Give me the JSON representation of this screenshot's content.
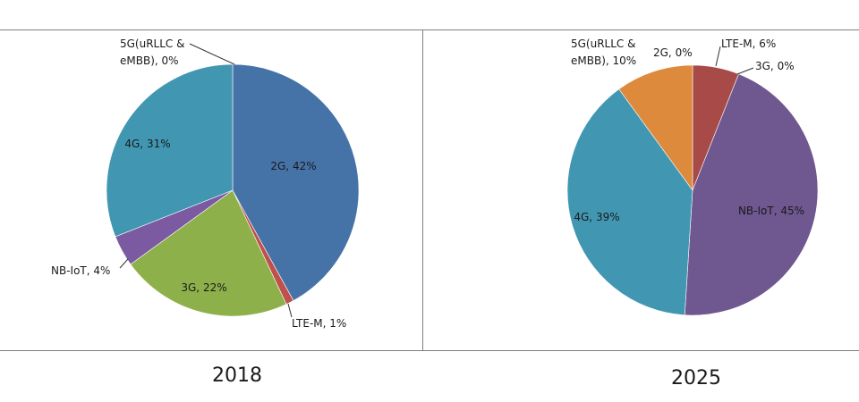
{
  "chart_data": [
    {
      "type": "pie",
      "title": "2018",
      "colors": {
        "2G": "#4572a7",
        "LTE-M": "#c0504d",
        "3G": "#8eb04a",
        "NB-IoT": "#7b5aa2",
        "4G": "#4197b2",
        "5G": "#dd8a3d"
      },
      "slices": [
        {
          "name": "2G",
          "value": 42,
          "label_name": "2G,",
          "label_pct": "42%"
        },
        {
          "name": "LTE-M",
          "value": 1,
          "label_name": "LTE-M,",
          "label_pct": "1%"
        },
        {
          "name": "3G",
          "value": 22,
          "label_name": "3G,",
          "label_pct": "22%"
        },
        {
          "name": "NB-IoT",
          "value": 4,
          "label_name": "NB-IoT,",
          "label_pct": "4%"
        },
        {
          "name": "4G",
          "value": 31,
          "label_name": "4G,",
          "label_pct": "31%"
        },
        {
          "name": "5G(uRLLC & eMBB)",
          "value": 0,
          "label_line1": "5G(uRLLC &",
          "label_line2": "eMBB),",
          "label_pct": "0%"
        }
      ]
    },
    {
      "type": "pie",
      "title": "2025",
      "colors": {
        "2G": "#4572a7",
        "LTE-M": "#a84a48",
        "3G": "#8eb04a",
        "NB-IoT": "#6f578f",
        "4G": "#4197b2",
        "5G": "#dd8a3d"
      },
      "slices": [
        {
          "name": "LTE-M",
          "value": 6,
          "label_name": "LTE-M,",
          "label_pct": "6%"
        },
        {
          "name": "3G",
          "value": 0,
          "label_name": "3G,",
          "label_pct": "0%"
        },
        {
          "name": "NB-IoT",
          "value": 45,
          "label_name": "NB-IoT,",
          "label_pct": "45%"
        },
        {
          "name": "4G",
          "value": 39,
          "label_name": "4G,",
          "label_pct": "39%"
        },
        {
          "name": "5G(uRLLC & eMBB)",
          "value": 10,
          "label_line1": "5G(uRLLC &",
          "label_line2": "eMBB),",
          "label_pct": "10%"
        },
        {
          "name": "2G",
          "value": 0,
          "label_name": "2G,",
          "label_pct": "0%"
        }
      ]
    }
  ]
}
